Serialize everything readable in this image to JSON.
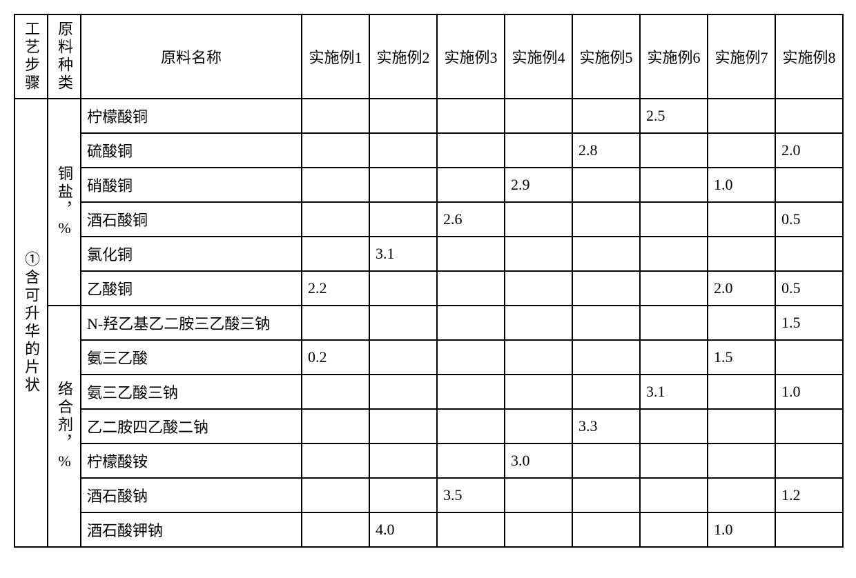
{
  "headers": {
    "col1": "工艺步骤",
    "col2": "原料种类",
    "col3": "原料名称",
    "ex1": "实施例1",
    "ex2": "实施例2",
    "ex3": "实施例3",
    "ex4": "实施例4",
    "ex5": "实施例5",
    "ex6": "实施例6",
    "ex7": "实施例7",
    "ex8": "实施例8"
  },
  "step_label": "①含可升华的片状",
  "categories": {
    "copper_salt": "铜盐，%",
    "complexing_agent": "络合剂，%"
  },
  "materials": {
    "copper_citrate": "柠檬酸铜",
    "copper_sulfate": "硫酸铜",
    "copper_nitrate": "硝酸铜",
    "copper_tartrate": "酒石酸铜",
    "copper_chloride": "氯化铜",
    "copper_acetate": "乙酸铜",
    "hedta": "N-羟乙基乙二胺三乙酸三钠",
    "nta": "氨三乙酸",
    "nta_trisodium": "氨三乙酸三钠",
    "edta_disodium": "乙二胺四乙酸二钠",
    "ammonium_citrate": "柠檬酸铵",
    "sodium_tartrate": "酒石酸钠",
    "potassium_sodium_tartrate": "酒石酸钾钠"
  },
  "data": {
    "copper_citrate": {
      "ex1": "",
      "ex2": "",
      "ex3": "",
      "ex4": "",
      "ex5": "",
      "ex6": "2.5",
      "ex7": "",
      "ex8": ""
    },
    "copper_sulfate": {
      "ex1": "",
      "ex2": "",
      "ex3": "",
      "ex4": "",
      "ex5": "2.8",
      "ex6": "",
      "ex7": "",
      "ex8": "2.0"
    },
    "copper_nitrate": {
      "ex1": "",
      "ex2": "",
      "ex3": "",
      "ex4": "2.9",
      "ex5": "",
      "ex6": "",
      "ex7": "1.0",
      "ex8": ""
    },
    "copper_tartrate": {
      "ex1": "",
      "ex2": "",
      "ex3": "2.6",
      "ex4": "",
      "ex5": "",
      "ex6": "",
      "ex7": "",
      "ex8": "0.5"
    },
    "copper_chloride": {
      "ex1": "",
      "ex2": "3.1",
      "ex3": "",
      "ex4": "",
      "ex5": "",
      "ex6": "",
      "ex7": "",
      "ex8": ""
    },
    "copper_acetate": {
      "ex1": "2.2",
      "ex2": "",
      "ex3": "",
      "ex4": "",
      "ex5": "",
      "ex6": "",
      "ex7": "2.0",
      "ex8": "0.5"
    },
    "hedta": {
      "ex1": "",
      "ex2": "",
      "ex3": "",
      "ex4": "",
      "ex5": "",
      "ex6": "",
      "ex7": "",
      "ex8": "1.5"
    },
    "nta": {
      "ex1": "0.2",
      "ex2": "",
      "ex3": "",
      "ex4": "",
      "ex5": "",
      "ex6": "",
      "ex7": "1.5",
      "ex8": ""
    },
    "nta_trisodium": {
      "ex1": "",
      "ex2": "",
      "ex3": "",
      "ex4": "",
      "ex5": "",
      "ex6": "3.1",
      "ex7": "",
      "ex8": "1.0"
    },
    "edta_disodium": {
      "ex1": "",
      "ex2": "",
      "ex3": "",
      "ex4": "",
      "ex5": "3.3",
      "ex6": "",
      "ex7": "",
      "ex8": ""
    },
    "ammonium_citrate": {
      "ex1": "",
      "ex2": "",
      "ex3": "",
      "ex4": "3.0",
      "ex5": "",
      "ex6": "",
      "ex7": "",
      "ex8": ""
    },
    "sodium_tartrate": {
      "ex1": "",
      "ex2": "",
      "ex3": "3.5",
      "ex4": "",
      "ex5": "",
      "ex6": "",
      "ex7": "",
      "ex8": "1.2"
    },
    "potassium_sodium_tartrate": {
      "ex1": "",
      "ex2": "4.0",
      "ex3": "",
      "ex4": "",
      "ex5": "",
      "ex6": "",
      "ex7": "1.0",
      "ex8": ""
    }
  },
  "styling": {
    "border_color": "#000000",
    "border_width": 2,
    "font_family": "SimSun",
    "font_size": 22,
    "background": "#ffffff"
  }
}
